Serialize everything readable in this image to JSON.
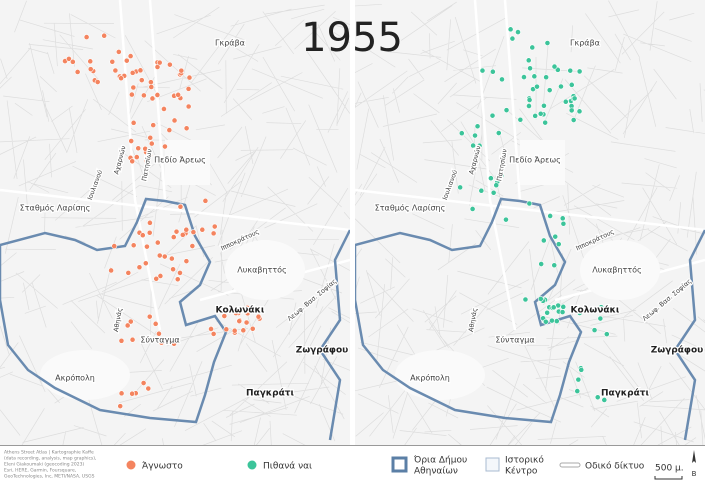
{
  "title": "1955",
  "maps": [
    {
      "labels": [
        "Γκράβα",
        "Πεδίο Άρεως",
        "Σταθμός Λαρίσης",
        "Λυκαβηττός",
        "Κολωνάκι",
        "Σύνταγμα",
        "Ακρόπολη",
        "Παγκράτι",
        "Ζωγράφου",
        "Αχαρνών",
        "Πατησίων",
        "Ιουλιανού",
        "Ιπποκράτους",
        "Αθηνάς",
        "Λεωφ. Βασ. Σοφίας"
      ]
    },
    {
      "labels": [
        "Γκράβα",
        "Πεδίο Άρεως",
        "Σταθμός Λαρίσης",
        "Λυκαβηττός",
        "Κολωνάκι",
        "Σύνταγμα",
        "Ακρόπολη",
        "Παγκράτι",
        "Ζωγράφου",
        "Αχαρνών",
        "Πατησίων",
        "Ιουλιανού",
        "Ιπποκράτους",
        "Αθηνάς",
        "Λεωφ. Βασ. Σοφίας"
      ]
    }
  ],
  "credits": [
    "Athens Street Atlas | Kartographie Kaffe",
    "(data recording, analysis, map graphics),",
    "Eleni Giakoumaki (geocoding 2023)",
    "Esri, HERE, Garmin, Foursquare,",
    "GeoTechnologies, Inc, METI/NASA, USGS"
  ],
  "legend": {
    "unknown": "Άγνωστο",
    "likely": "Πιθανά ναι",
    "boundary": "Όρια Δήμου Αθηναίων",
    "boundary_line2": "Αθηναίων",
    "center_line1": "Ιστορικό",
    "center_line2": "Κέντρο",
    "roads": "Οδικό δίκτυο",
    "scale": "500 μ.",
    "north": "Β"
  }
}
